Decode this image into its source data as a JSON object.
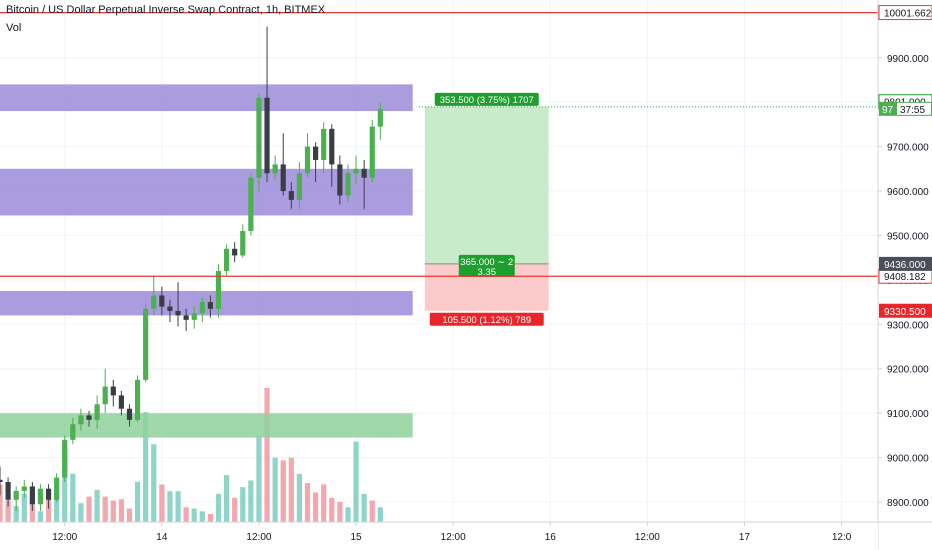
{
  "header": {
    "title": "Bitcoin / US Dollar Perpetual Inverse Swap Contract, 1h, BITMEX",
    "volume_label": "Vol"
  },
  "colors": {
    "up": "#4caf50",
    "down": "#3b3d46",
    "volume_up": "#8ed4c8",
    "volume_down": "#f3a6ac",
    "zone_purple": "#9b8bd8",
    "zone_green": "#8fd19e",
    "resistance_line": "#e53935",
    "target_fill": "#c8ecca",
    "stop_fill": "#fbcbcb",
    "target_label": "#1e9e2f",
    "stop_label": "#e8262a"
  },
  "chart_data": {
    "type": "candlestick",
    "y_axis": {
      "ticks": [
        "9900.000",
        "9800.000",
        "9700.000",
        "9600.000",
        "9500.000",
        "9400.000",
        "9300.000",
        "9200.000",
        "9100.000",
        "9000.000",
        "8900.000"
      ],
      "tick_values": [
        9900,
        9800,
        9700,
        9600,
        9500,
        9400,
        9300,
        9200,
        9100,
        9000,
        8900
      ],
      "range": [
        8855,
        10030
      ]
    },
    "x_axis": {
      "ticks": [
        "12:00",
        "14",
        "12:00",
        "15",
        "12:00",
        "16",
        "12:00",
        "17",
        "12:0"
      ],
      "tick_hours": [
        12,
        24,
        36,
        48,
        60,
        72,
        84,
        96,
        108
      ],
      "range_hours": [
        4,
        112.5
      ]
    },
    "candles": [
      {
        "h": 4,
        "o": 8950,
        "c": 8945,
        "hi": 8980,
        "lo": 8915
      },
      {
        "h": 5,
        "o": 8945,
        "c": 8905,
        "hi": 8955,
        "lo": 8890
      },
      {
        "h": 6,
        "o": 8905,
        "c": 8925,
        "hi": 8935,
        "lo": 8880
      },
      {
        "h": 7,
        "o": 8925,
        "c": 8935,
        "hi": 8950,
        "lo": 8910
      },
      {
        "h": 8,
        "o": 8935,
        "c": 8895,
        "hi": 8945,
        "lo": 8880
      },
      {
        "h": 9,
        "o": 8895,
        "c": 8930,
        "hi": 8940,
        "lo": 8880
      },
      {
        "h": 10,
        "o": 8930,
        "c": 8905,
        "hi": 8940,
        "lo": 8885
      },
      {
        "h": 11,
        "o": 8905,
        "c": 8955,
        "hi": 8965,
        "lo": 8900
      },
      {
        "h": 12,
        "o": 8955,
        "c": 9040,
        "hi": 9050,
        "lo": 8945
      },
      {
        "h": 13,
        "o": 9040,
        "c": 9075,
        "hi": 9090,
        "lo": 9030
      },
      {
        "h": 14,
        "o": 9075,
        "c": 9095,
        "hi": 9110,
        "lo": 9060
      },
      {
        "h": 15,
        "o": 9095,
        "c": 9085,
        "hi": 9105,
        "lo": 9070
      },
      {
        "h": 16,
        "o": 9085,
        "c": 9120,
        "hi": 9140,
        "lo": 9065
      },
      {
        "h": 17,
        "o": 9120,
        "c": 9160,
        "hi": 9200,
        "lo": 9100
      },
      {
        "h": 18,
        "o": 9160,
        "c": 9140,
        "hi": 9175,
        "lo": 9115
      },
      {
        "h": 19,
        "o": 9140,
        "c": 9110,
        "hi": 9150,
        "lo": 9095
      },
      {
        "h": 20,
        "o": 9110,
        "c": 9085,
        "hi": 9120,
        "lo": 9070
      },
      {
        "h": 21,
        "o": 9085,
        "c": 9175,
        "hi": 9185,
        "lo": 9080
      },
      {
        "h": 22,
        "o": 9175,
        "c": 9335,
        "hi": 9345,
        "lo": 9170
      },
      {
        "h": 23,
        "o": 9335,
        "c": 9365,
        "hi": 9410,
        "lo": 9320
      },
      {
        "h": 24,
        "o": 9365,
        "c": 9340,
        "hi": 9385,
        "lo": 9320
      },
      {
        "h": 25,
        "o": 9340,
        "c": 9330,
        "hi": 9355,
        "lo": 9305
      },
      {
        "h": 26,
        "o": 9330,
        "c": 9320,
        "hi": 9395,
        "lo": 9295
      },
      {
        "h": 27,
        "o": 9320,
        "c": 9310,
        "hi": 9335,
        "lo": 9285
      },
      {
        "h": 28,
        "o": 9310,
        "c": 9325,
        "hi": 9340,
        "lo": 9290
      },
      {
        "h": 29,
        "o": 9325,
        "c": 9350,
        "hi": 9360,
        "lo": 9305
      },
      {
        "h": 30,
        "o": 9350,
        "c": 9335,
        "hi": 9365,
        "lo": 9315
      },
      {
        "h": 31,
        "o": 9335,
        "c": 9420,
        "hi": 9435,
        "lo": 9315
      },
      {
        "h": 32,
        "o": 9420,
        "c": 9470,
        "hi": 9480,
        "lo": 9410
      },
      {
        "h": 33,
        "o": 9470,
        "c": 9455,
        "hi": 9485,
        "lo": 9440
      },
      {
        "h": 34,
        "o": 9455,
        "c": 9510,
        "hi": 9525,
        "lo": 9450
      },
      {
        "h": 35,
        "o": 9510,
        "c": 9630,
        "hi": 9640,
        "lo": 9500
      },
      {
        "h": 36,
        "o": 9630,
        "c": 9810,
        "hi": 9820,
        "lo": 9600
      },
      {
        "h": 37,
        "o": 9810,
        "c": 9640,
        "hi": 9970,
        "lo": 9620
      },
      {
        "h": 38,
        "o": 9640,
        "c": 9660,
        "hi": 9680,
        "lo": 9625
      },
      {
        "h": 39,
        "o": 9660,
        "c": 9600,
        "hi": 9730,
        "lo": 9590
      },
      {
        "h": 40,
        "o": 9600,
        "c": 9580,
        "hi": 9620,
        "lo": 9560
      },
      {
        "h": 41,
        "o": 9580,
        "c": 9640,
        "hi": 9665,
        "lo": 9560
      },
      {
        "h": 42,
        "o": 9640,
        "c": 9700,
        "hi": 9730,
        "lo": 9630
      },
      {
        "h": 43,
        "o": 9700,
        "c": 9670,
        "hi": 9710,
        "lo": 9620
      },
      {
        "h": 44,
        "o": 9670,
        "c": 9740,
        "hi": 9755,
        "lo": 9640
      },
      {
        "h": 45,
        "o": 9740,
        "c": 9660,
        "hi": 9750,
        "lo": 9610
      },
      {
        "h": 46,
        "o": 9660,
        "c": 9590,
        "hi": 9680,
        "lo": 9570
      },
      {
        "h": 47,
        "o": 9590,
        "c": 9640,
        "hi": 9660,
        "lo": 9575
      },
      {
        "h": 48,
        "o": 9640,
        "c": 9650,
        "hi": 9680,
        "lo": 9615
      },
      {
        "h": 49,
        "o": 9650,
        "c": 9630,
        "hi": 9670,
        "lo": 9560
      },
      {
        "h": 50,
        "o": 9630,
        "c": 9745,
        "hi": 9760,
        "lo": 9620
      },
      {
        "h": 51,
        "o": 9745,
        "c": 9785,
        "hi": 9800,
        "lo": 9715
      }
    ],
    "volume": [
      {
        "h": 4,
        "v": 0.28,
        "up": false
      },
      {
        "h": 5,
        "v": 0.16,
        "up": false
      },
      {
        "h": 6,
        "v": 0.12,
        "up": true
      },
      {
        "h": 7,
        "v": 0.21,
        "up": true
      },
      {
        "h": 8,
        "v": 0.19,
        "up": false
      },
      {
        "h": 9,
        "v": 0.08,
        "up": true
      },
      {
        "h": 10,
        "v": 0.17,
        "up": false
      },
      {
        "h": 11,
        "v": 0.24,
        "up": true
      },
      {
        "h": 12,
        "v": 0.55,
        "up": true
      },
      {
        "h": 13,
        "v": 0.36,
        "up": true
      },
      {
        "h": 14,
        "v": 0.14,
        "up": true
      },
      {
        "h": 15,
        "v": 0.19,
        "up": false
      },
      {
        "h": 16,
        "v": 0.24,
        "up": true
      },
      {
        "h": 17,
        "v": 0.19,
        "up": false
      },
      {
        "h": 18,
        "v": 0.16,
        "up": false
      },
      {
        "h": 19,
        "v": 0.17,
        "up": false
      },
      {
        "h": 20,
        "v": 0.1,
        "up": false
      },
      {
        "h": 21,
        "v": 0.3,
        "up": true
      },
      {
        "h": 22,
        "v": 0.82,
        "up": true
      },
      {
        "h": 23,
        "v": 0.58,
        "up": true
      },
      {
        "h": 24,
        "v": 0.28,
        "up": false
      },
      {
        "h": 25,
        "v": 0.23,
        "up": true
      },
      {
        "h": 26,
        "v": 0.23,
        "up": true
      },
      {
        "h": 27,
        "v": 0.11,
        "up": false
      },
      {
        "h": 28,
        "v": 0.1,
        "up": true
      },
      {
        "h": 29,
        "v": 0.08,
        "up": true
      },
      {
        "h": 30,
        "v": 0.06,
        "up": false
      },
      {
        "h": 31,
        "v": 0.21,
        "up": true
      },
      {
        "h": 32,
        "v": 0.35,
        "up": true
      },
      {
        "h": 33,
        "v": 0.18,
        "up": false
      },
      {
        "h": 34,
        "v": 0.26,
        "up": true
      },
      {
        "h": 35,
        "v": 0.31,
        "up": true
      },
      {
        "h": 36,
        "v": 0.64,
        "up": true
      },
      {
        "h": 37,
        "v": 1.0,
        "up": false
      },
      {
        "h": 38,
        "v": 0.48,
        "up": true
      },
      {
        "h": 39,
        "v": 0.46,
        "up": false
      },
      {
        "h": 40,
        "v": 0.48,
        "up": false
      },
      {
        "h": 41,
        "v": 0.36,
        "up": true
      },
      {
        "h": 42,
        "v": 0.29,
        "up": false
      },
      {
        "h": 43,
        "v": 0.22,
        "up": false
      },
      {
        "h": 44,
        "v": 0.28,
        "up": false
      },
      {
        "h": 45,
        "v": 0.18,
        "up": false
      },
      {
        "h": 46,
        "v": 0.15,
        "up": false
      },
      {
        "h": 47,
        "v": 0.11,
        "up": true
      },
      {
        "h": 48,
        "v": 0.6,
        "up": true
      },
      {
        "h": 49,
        "v": 0.21,
        "up": true
      },
      {
        "h": 50,
        "v": 0.16,
        "up": false
      },
      {
        "h": 51,
        "v": 0.11,
        "up": true
      }
    ],
    "zones": [
      {
        "name": "supply-zone",
        "type": "purple",
        "lo": 9780,
        "hi": 9840,
        "h_start": 4,
        "h_end": 55
      },
      {
        "name": "mid-zone",
        "type": "purple",
        "lo": 9545,
        "hi": 9650,
        "h_start": 4,
        "h_end": 55
      },
      {
        "name": "lower-zone",
        "type": "purple",
        "lo": 9320,
        "hi": 9375,
        "h_start": 4,
        "h_end": 55
      },
      {
        "name": "demand-zone",
        "type": "green",
        "lo": 9045,
        "hi": 9100,
        "h_start": 4,
        "h_end": 55
      }
    ],
    "horizontal_lines": [
      {
        "price": 10001.662,
        "label": "10001.662"
      },
      {
        "price": 9408.182,
        "label": "9408.182"
      }
    ],
    "position": {
      "h_start": 56.5,
      "h_end": 71.8,
      "target": 9789.5,
      "entry": 9436.0,
      "stop": 9330.5,
      "target_label": "353.500 (3.75%) 1707",
      "entry_label_1": "365.000 ∼ 2",
      "entry_label_2": "3.35",
      "stop_label": "105.500 (1.12%) 789"
    },
    "price_badges": [
      {
        "price": 9801,
        "label": "9801.000",
        "style": "white-border"
      },
      {
        "price": 9785,
        "label": "97",
        "extra": "37:55",
        "style": "green"
      },
      {
        "price": 9436,
        "label": "9436.000",
        "style": "dark"
      },
      {
        "price": 9330.5,
        "label": "9330.500",
        "style": "red"
      }
    ]
  }
}
